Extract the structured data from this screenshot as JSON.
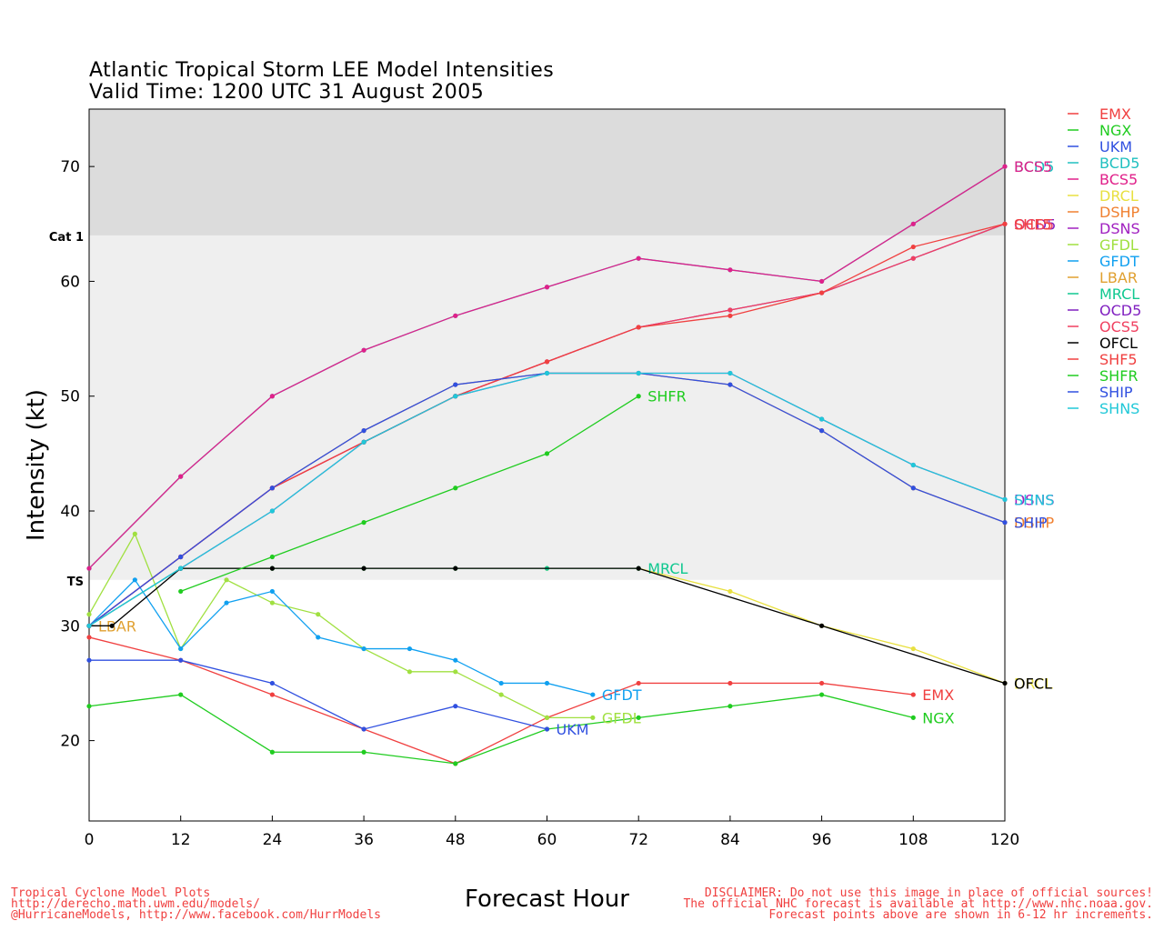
{
  "title_line1": "Atlantic Tropical Storm LEE Model Intensities",
  "title_line2": "Valid Time: 1200 UTC 31 August 2005",
  "footer_left": [
    "Tropical Cyclone Model Plots",
    "http://derecho.math.uwm.edu/models/",
    "@HurricaneModels, http://www.facebook.com/HurrModels"
  ],
  "footer_right": [
    "DISCLAIMER: Do not use this image in place of official sources!",
    "The official NHC forecast is available at http://www.nhc.noaa.gov.",
    "Forecast points above are shown in 6-12 hr increments."
  ],
  "chart_data": {
    "type": "line",
    "xlabel": "Forecast Hour",
    "ylabel": "Intensity (kt)",
    "xlim": [
      0,
      120
    ],
    "ylim": [
      13,
      75
    ],
    "xticks": [
      0,
      12,
      24,
      36,
      48,
      60,
      72,
      84,
      96,
      108,
      120
    ],
    "yticks": [
      20,
      30,
      40,
      50,
      60,
      70
    ],
    "bands": [
      {
        "label": "TS",
        "from": 34,
        "to": 64,
        "color": "#efefef"
      },
      {
        "label": "Cat 1",
        "from": 64,
        "to": 75,
        "color": "#dcdcdc"
      }
    ],
    "legend_position": "right",
    "series": [
      {
        "name": "EMX",
        "color": "#f04040",
        "x": [
          0,
          12,
          24,
          36,
          48,
          60,
          72,
          84,
          96,
          108
        ],
        "y": [
          29,
          27,
          24,
          21,
          18,
          22,
          25,
          25,
          25,
          24
        ],
        "label": "EMX"
      },
      {
        "name": "NGX",
        "color": "#20cc20",
        "x": [
          0,
          12,
          24,
          36,
          48,
          60,
          72,
          84,
          96,
          108
        ],
        "y": [
          23,
          24,
          19,
          19,
          18,
          21,
          22,
          23,
          24,
          22
        ],
        "label": "NGX"
      },
      {
        "name": "UKM",
        "color": "#3050e0",
        "x": [
          0,
          12,
          24,
          36,
          48,
          60
        ],
        "y": [
          27,
          27,
          25,
          21,
          23,
          21
        ],
        "label": "UKM"
      },
      {
        "name": "BCD5",
        "color": "#20c0c0",
        "x": [
          0,
          12,
          24,
          36,
          48,
          60,
          72,
          84,
          96,
          108,
          120
        ],
        "y": [
          35,
          43,
          50,
          54,
          57,
          59.5,
          62,
          61,
          60,
          65,
          70
        ],
        "label": "BCD5"
      },
      {
        "name": "BCS5",
        "color": "#e0208a",
        "x": [
          0,
          12,
          24,
          36,
          48,
          60,
          72,
          84,
          96,
          108,
          120
        ],
        "y": [
          35,
          43,
          50,
          54,
          57,
          59.5,
          62,
          61,
          60,
          65,
          70
        ],
        "label": "BCS5"
      },
      {
        "name": "DRCL",
        "color": "#e8e040",
        "x": [
          0,
          12,
          24,
          36,
          48,
          60,
          72,
          84,
          96,
          108,
          120
        ],
        "y": [
          30,
          35,
          35,
          35,
          35,
          35,
          35,
          33,
          30,
          28,
          25
        ],
        "label": "DRCL"
      },
      {
        "name": "DSHP",
        "color": "#f08030",
        "x": [
          0,
          12,
          24,
          36,
          48,
          60,
          72,
          84,
          96,
          108,
          120
        ],
        "y": [
          30,
          36,
          42,
          47,
          51,
          52,
          52,
          51,
          47,
          42,
          39
        ],
        "label": "DSHP"
      },
      {
        "name": "DSNS",
        "color": "#a020c0",
        "x": [
          0,
          12,
          24,
          36,
          48,
          60,
          72,
          84,
          96,
          108,
          120
        ],
        "y": [
          30,
          35,
          40,
          46,
          50,
          52,
          52,
          52,
          48,
          44,
          41
        ],
        "label": "DSNS"
      },
      {
        "name": "GFDL",
        "color": "#a0e040",
        "x": [
          0,
          6,
          12,
          18,
          24,
          30,
          36,
          42,
          48,
          54,
          60,
          66
        ],
        "y": [
          31,
          38,
          28,
          34,
          32,
          31,
          28,
          26,
          26,
          24,
          22,
          22
        ],
        "label": "GFDL"
      },
      {
        "name": "GFDT",
        "color": "#10a0f0",
        "x": [
          0,
          6,
          12,
          18,
          24,
          30,
          36,
          42,
          48,
          54,
          60,
          66
        ],
        "y": [
          30,
          34,
          28,
          32,
          33,
          29,
          28,
          28,
          27,
          25,
          25,
          24
        ],
        "label": "GFDT"
      },
      {
        "name": "LBAR",
        "color": "#e0a030",
        "x": [
          0
        ],
        "y": [
          30
        ],
        "label": "LBAR"
      },
      {
        "name": "MRCL",
        "color": "#10c890",
        "x": [
          0,
          12,
          24,
          36,
          48,
          60,
          72
        ],
        "y": [
          30,
          35,
          35,
          35,
          35,
          35,
          35
        ],
        "label": "MRCL"
      },
      {
        "name": "OCD5",
        "color": "#8020c0",
        "x": [
          0,
          12,
          24,
          36,
          48,
          60,
          72,
          84,
          96,
          108,
          120
        ],
        "y": [
          30,
          36,
          42,
          46,
          50,
          53,
          56,
          57.5,
          59,
          62,
          65
        ],
        "label": "OCD5"
      },
      {
        "name": "OCS5",
        "color": "#f04060",
        "x": [
          0,
          12,
          24,
          36,
          48,
          60,
          72,
          84,
          96,
          108,
          120
        ],
        "y": [
          30,
          36,
          42,
          46,
          50,
          53,
          56,
          57.5,
          59,
          62,
          65
        ],
        "label": "OCS5"
      },
      {
        "name": "OFCL",
        "color": "#000000",
        "x": [
          0,
          3,
          12,
          24,
          36,
          48,
          72,
          96,
          120
        ],
        "y": [
          30,
          30,
          35,
          35,
          35,
          35,
          35,
          30,
          25
        ],
        "label": "OFCL"
      },
      {
        "name": "SHF5",
        "color": "#f04040",
        "x": [
          0,
          12,
          24,
          36,
          48,
          60,
          72,
          84,
          96,
          108,
          120
        ],
        "y": [
          30,
          36,
          42,
          46,
          50,
          53,
          56,
          57,
          59,
          63,
          65
        ],
        "label": "SHF5"
      },
      {
        "name": "SHFR",
        "color": "#20cc20",
        "x": [
          12,
          24,
          36,
          48,
          60,
          72
        ],
        "y": [
          33,
          36,
          39,
          42,
          45,
          50
        ],
        "label": "SHFR"
      },
      {
        "name": "SHIP",
        "color": "#3050e0",
        "x": [
          0,
          12,
          24,
          36,
          48,
          60,
          72,
          84,
          96,
          108,
          120
        ],
        "y": [
          30,
          36,
          42,
          47,
          51,
          52,
          52,
          51,
          47,
          42,
          39
        ],
        "label": "SHIP"
      },
      {
        "name": "SHNS",
        "color": "#20c8d8",
        "x": [
          0,
          12,
          24,
          36,
          48,
          60,
          72,
          84,
          96,
          108,
          120
        ],
        "y": [
          30,
          35,
          40,
          46,
          50,
          52,
          52,
          52,
          48,
          44,
          41
        ],
        "label": "SHNS"
      }
    ]
  }
}
